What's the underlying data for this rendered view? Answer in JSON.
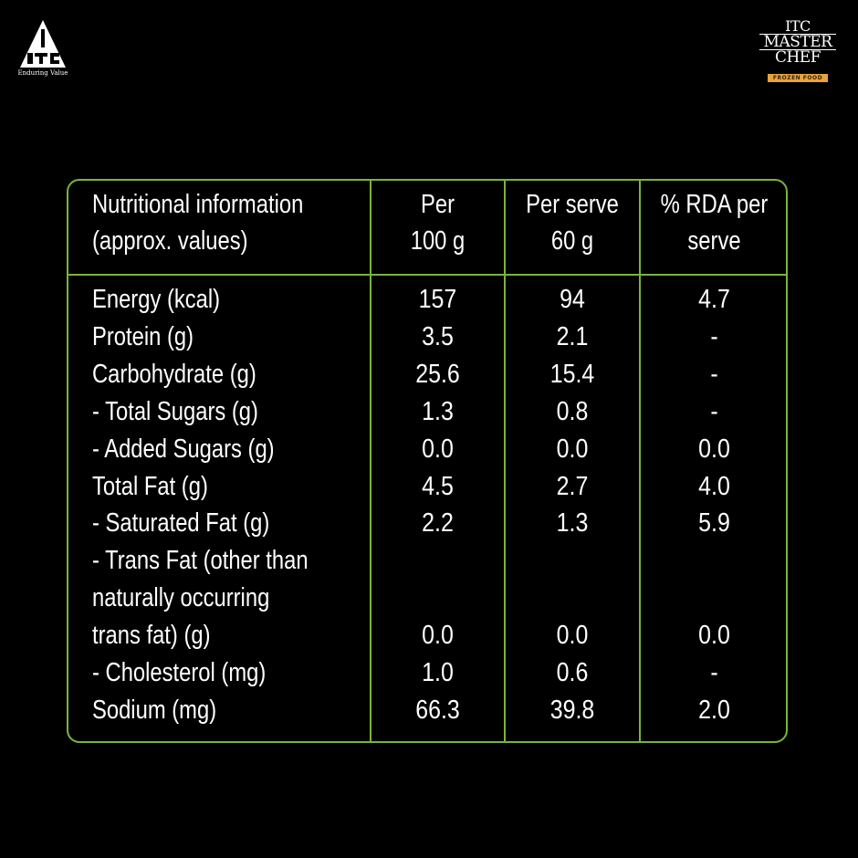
{
  "brand": {
    "itc_tagline": "Enduring Value",
    "mc_line1": "ITC",
    "mc_line2": "MASTER",
    "mc_line3": "CHEF",
    "mc_band": "FROZEN FOOD"
  },
  "table": {
    "headers": {
      "col1_line1": "Nutritional information",
      "col1_line2": "(approx. values)",
      "col2_line1": "Per",
      "col2_line2": "100 g",
      "col3_line1": "Per serve",
      "col3_line2": "60 g",
      "col4_line1": "% RDA per",
      "col4_line2": "serve"
    },
    "rows": [
      {
        "label": "Energy (kcal)",
        "per100": "157",
        "perServe": "94",
        "rda": "4.7"
      },
      {
        "label": "Protein (g)",
        "per100": "3.5",
        "perServe": "2.1",
        "rda": "-"
      },
      {
        "label": "Carbohydrate (g)",
        "per100": "25.6",
        "perServe": "15.4",
        "rda": "-"
      },
      {
        "label": "- Total Sugars (g)",
        "per100": "1.3",
        "perServe": "0.8",
        "rda": "-"
      },
      {
        "label": "- Added Sugars (g)",
        "per100": "0.0",
        "perServe": "0.0",
        "rda": "0.0"
      },
      {
        "label": "Total Fat (g)",
        "per100": "4.5",
        "perServe": "2.7",
        "rda": "4.0"
      },
      {
        "label": "- Saturated Fat (g)",
        "per100": "2.2",
        "perServe": "1.3",
        "rda": "5.9"
      },
      {
        "label": "- Trans Fat (other than",
        "per100": "",
        "perServe": "",
        "rda": ""
      },
      {
        "label": "naturally occurring",
        "per100": "",
        "perServe": "",
        "rda": ""
      },
      {
        "label": "trans fat) (g)",
        "per100": "0.0",
        "perServe": "0.0",
        "rda": "0.0"
      },
      {
        "label": "- Cholesterol (mg)",
        "per100": "1.0",
        "perServe": "0.6",
        "rda": "-"
      },
      {
        "label": "Sodium (mg)",
        "per100": "66.3",
        "perServe": "39.8",
        "rda": "2.0"
      }
    ]
  },
  "colors": {
    "background": "#000000",
    "border": "#7ab43a",
    "text": "#ffffff",
    "band": "#e8a33a"
  }
}
